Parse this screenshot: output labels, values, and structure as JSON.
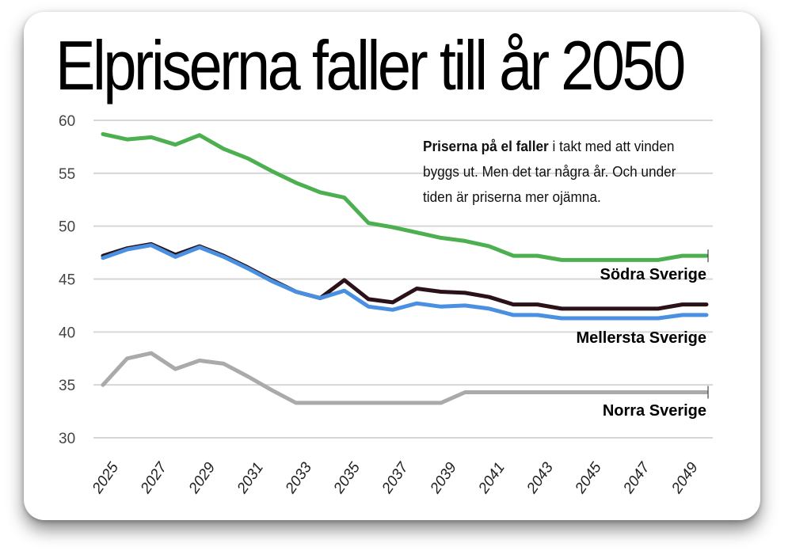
{
  "title": "Elpriserna faller till år 2050",
  "description": {
    "bold": "Priserna på el faller",
    "rest": "i takt med att vinden byggs ut. Men det tar några år. Och under tiden är priserna mer ojämna."
  },
  "colors": {
    "sodra": "#4caf50",
    "mellersta_top": "#2b1118",
    "mellersta": "#4a90e2",
    "norra": "#aaaaaa",
    "grid": "#d6d6d6"
  },
  "chart_data": {
    "type": "line",
    "title": "Elpriserna faller till år 2050",
    "xlabel": "",
    "ylabel": "",
    "ylim": [
      30,
      60
    ],
    "yticks": [
      "60",
      "55",
      "50",
      "45",
      "40",
      "35",
      "30"
    ],
    "xticks": [
      "2025",
      "2027",
      "2029",
      "2031",
      "2033",
      "2035",
      "2037",
      "2039",
      "2041",
      "2043",
      "2045",
      "2047",
      "2049"
    ],
    "x": [
      2025,
      2026,
      2027,
      2028,
      2029,
      2030,
      2031,
      2032,
      2033,
      2034,
      2035,
      2036,
      2037,
      2038,
      2039,
      2040,
      2041,
      2042,
      2043,
      2044,
      2045,
      2046,
      2047,
      2048,
      2049,
      2050
    ],
    "grid": true,
    "series": [
      {
        "name": "Södra Sverige",
        "label": "Södra Sverige",
        "color_key": "sodra",
        "values": [
          58.7,
          58.2,
          58.4,
          57.7,
          58.6,
          57.3,
          56.4,
          55.2,
          54.1,
          53.2,
          52.7,
          50.3,
          49.9,
          49.4,
          48.9,
          48.6,
          48.1,
          47.2,
          47.2,
          46.8,
          46.8,
          46.8,
          46.8,
          46.8,
          47.2,
          47.2
        ]
      },
      {
        "name": "Mellersta Sverige (övre)",
        "label": "",
        "color_key": "mellersta_top",
        "values": [
          47.2,
          47.9,
          48.3,
          47.3,
          48.1,
          47.2,
          46.1,
          44.9,
          43.8,
          43.2,
          44.9,
          43.1,
          42.8,
          44.1,
          43.8,
          43.7,
          43.3,
          42.6,
          42.6,
          42.2,
          42.2,
          42.2,
          42.2,
          42.2,
          42.6,
          42.6
        ]
      },
      {
        "name": "Mellersta Sverige",
        "label": "Mellersta Sverige",
        "color_key": "mellersta",
        "values": [
          47.0,
          47.8,
          48.2,
          47.1,
          48.0,
          47.1,
          46.0,
          44.8,
          43.8,
          43.2,
          43.9,
          42.4,
          42.1,
          42.7,
          42.4,
          42.5,
          42.2,
          41.6,
          41.6,
          41.3,
          41.3,
          41.3,
          41.3,
          41.3,
          41.6,
          41.6
        ]
      },
      {
        "name": "Norra Sverige",
        "label": "Norra Sverige",
        "color_key": "norra",
        "values": [
          35.0,
          37.5,
          38.0,
          36.5,
          37.3,
          37.0,
          35.8,
          34.5,
          33.3,
          33.3,
          33.3,
          33.3,
          33.3,
          33.3,
          33.3,
          34.3,
          34.3,
          34.3,
          34.3,
          34.3,
          34.3,
          34.3,
          34.3,
          34.3,
          34.3,
          34.3
        ]
      }
    ]
  }
}
